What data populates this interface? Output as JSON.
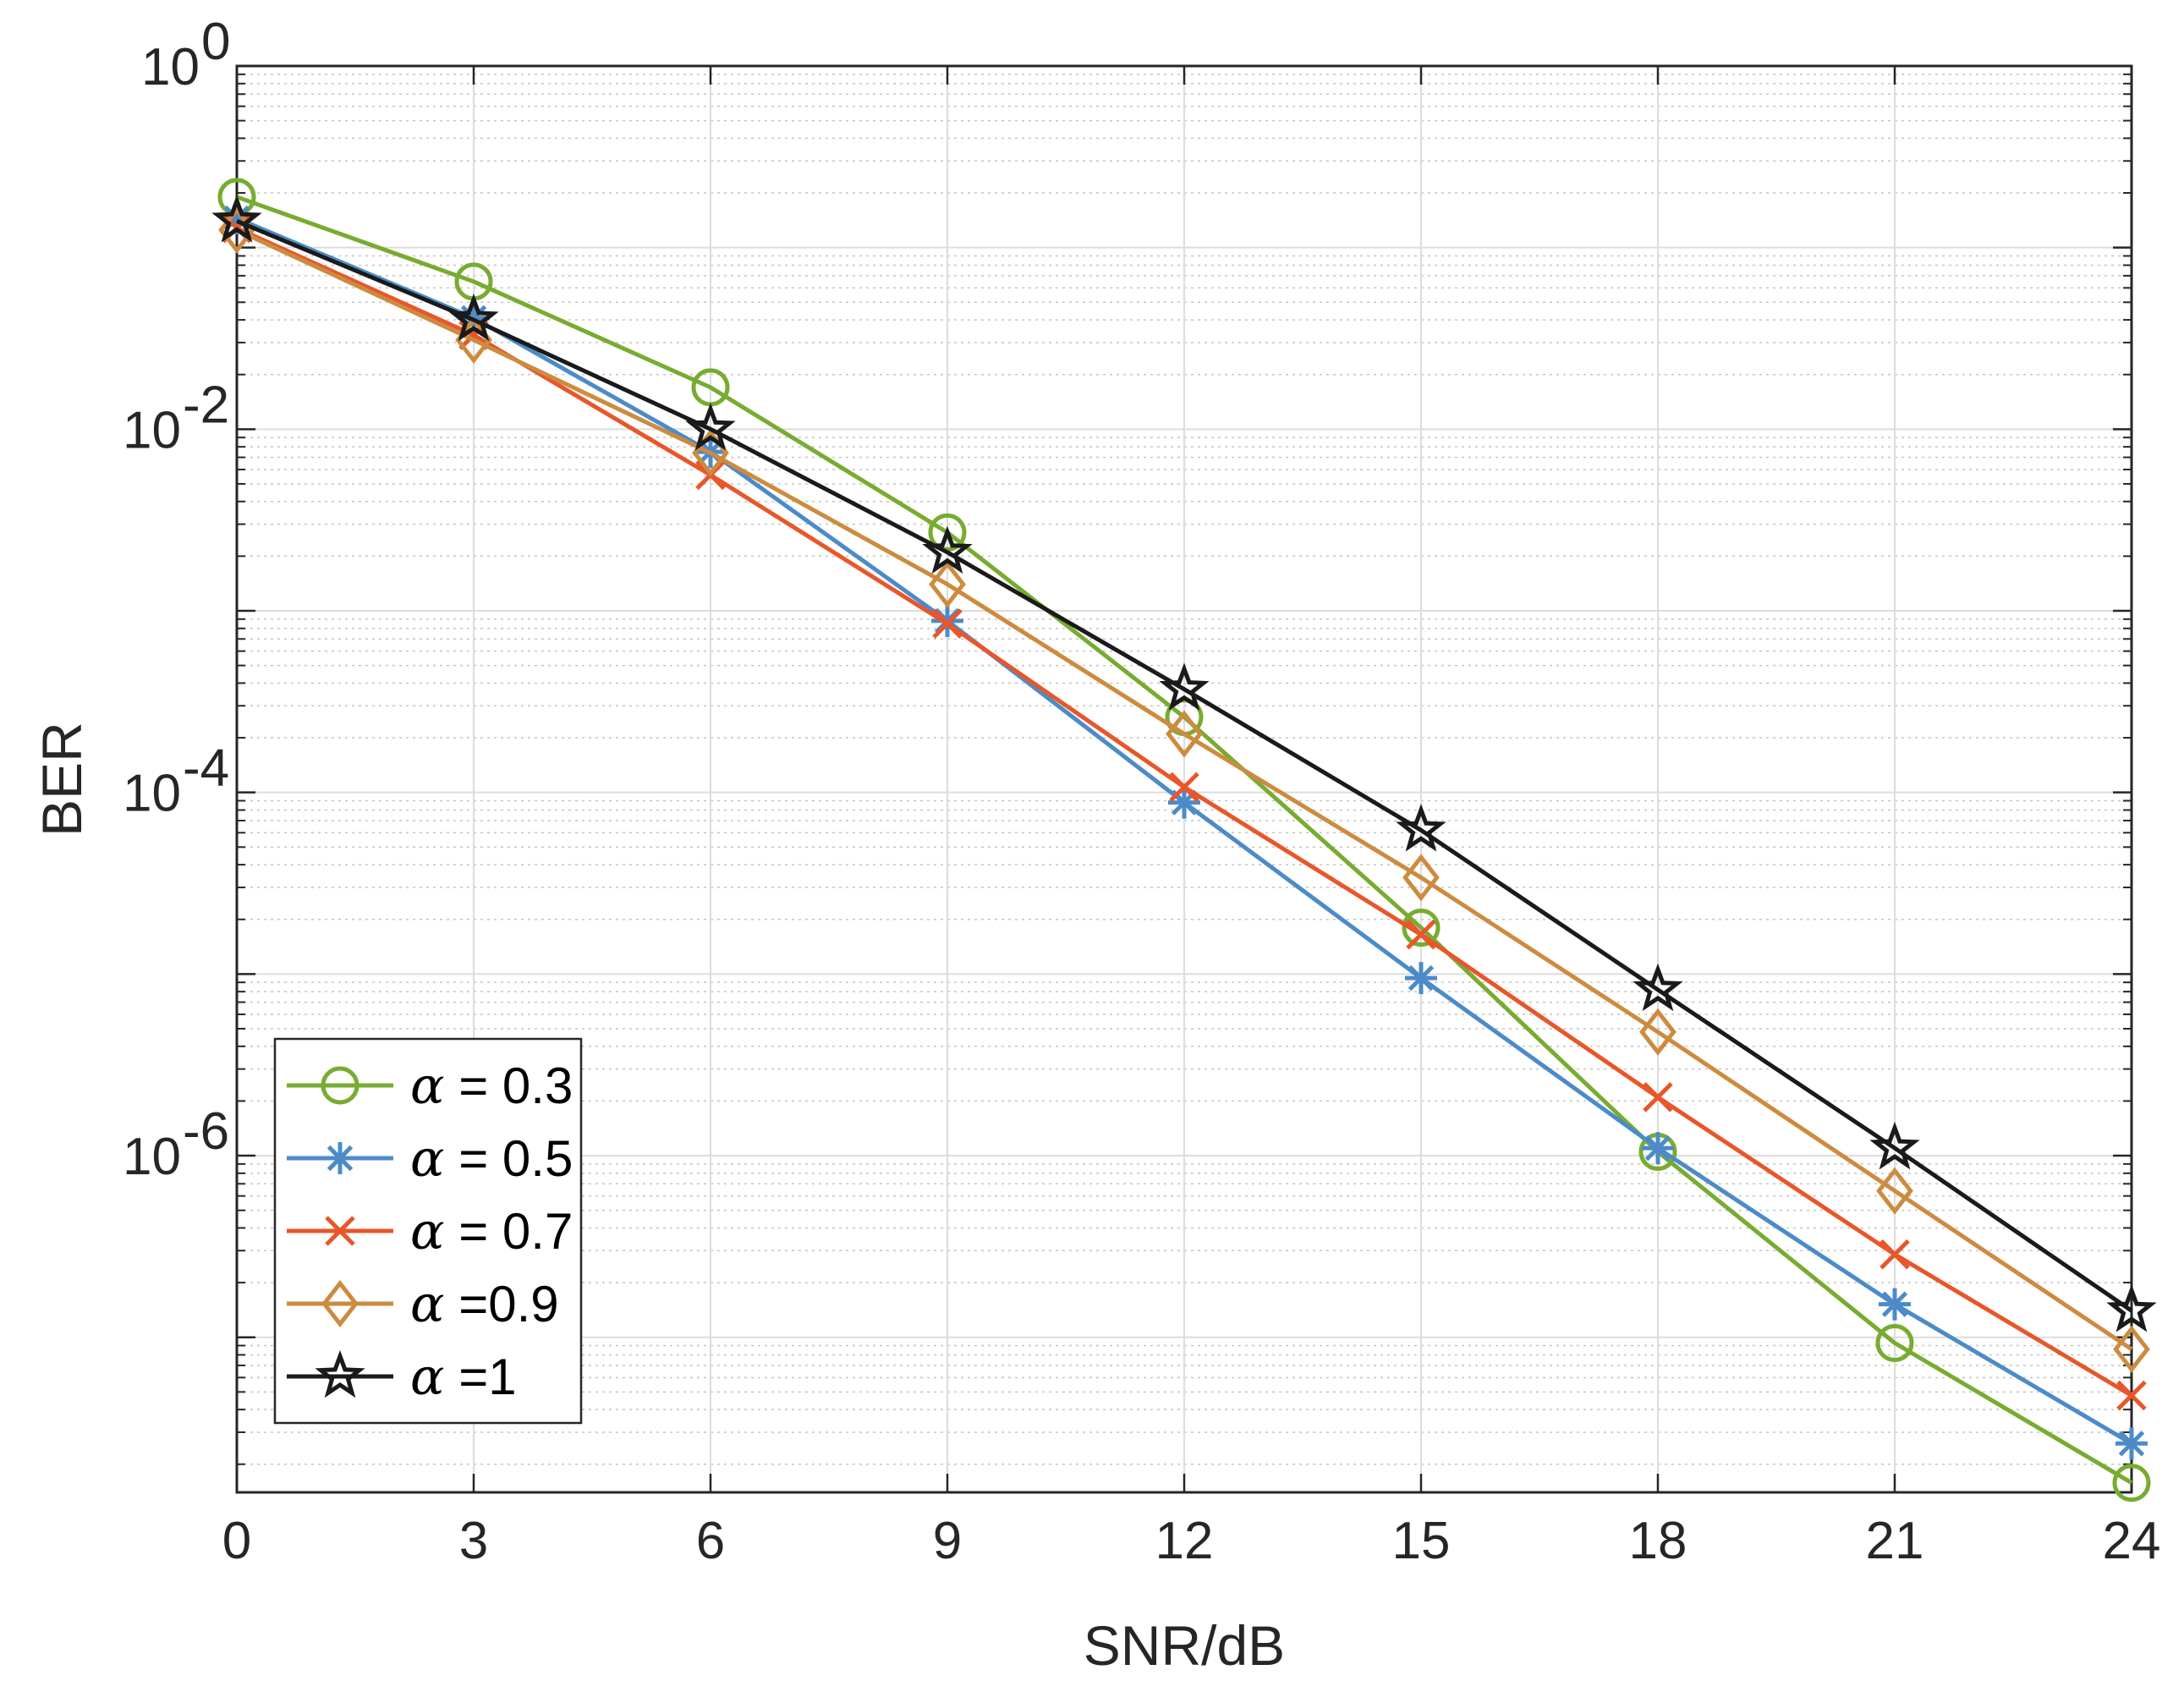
{
  "chart_data": {
    "type": "line",
    "title": "",
    "xlabel": "SNR/dB",
    "ylabel": "BER",
    "xlim": [
      0,
      24
    ],
    "x_ticks": [
      "0",
      "3",
      "6",
      "9",
      "12",
      "15",
      "18",
      "21",
      "24"
    ],
    "yscale": "log",
    "ylim": [
      1.4e-08,
      1
    ],
    "y_ticks": [
      {
        "value": 1,
        "base": "10",
        "exp": "0"
      },
      {
        "value": 0.01,
        "base": "10",
        "exp": "-2"
      },
      {
        "value": 0.0001,
        "base": "10",
        "exp": "-4"
      },
      {
        "value": 1e-06,
        "base": "10",
        "exp": "-6"
      }
    ],
    "grid": true,
    "legend_position": "bottom-left",
    "x": [
      0,
      3,
      6,
      9,
      12,
      15,
      18,
      21,
      24
    ],
    "series": [
      {
        "name_symbol": "α",
        "name_rest": " = 0.3",
        "color": "#77AC30",
        "marker": "circle",
        "values": [
          0.19,
          0.065,
          0.017,
          0.0027,
          0.00026,
          1.8e-05,
          1.05e-06,
          9.3e-08,
          1.58e-08
        ]
      },
      {
        "name_symbol": "α",
        "name_rest": " = 0.5",
        "color": "#4C8BC8",
        "marker": "asterisk",
        "values": [
          0.145,
          0.041,
          0.0075,
          0.00088,
          8.8e-05,
          9.5e-06,
          1.1e-06,
          1.52e-07,
          2.6e-08
        ]
      },
      {
        "name_symbol": "α",
        "name_rest": " = 0.7",
        "color": "#E8562A",
        "marker": "x",
        "values": [
          0.128,
          0.033,
          0.0056,
          0.00085,
          0.000107,
          1.65e-05,
          2.1e-06,
          2.86e-07,
          4.78e-08
        ]
      },
      {
        "name_symbol": "α",
        "name_rest": " =0.9",
        "color": "#CD8B3F",
        "marker": "diamond",
        "values": [
          0.125,
          0.031,
          0.0074,
          0.0014,
          0.00021,
          3.4e-05,
          4.8e-06,
          6.4e-07,
          8.6e-08
        ]
      },
      {
        "name_symbol": "α",
        "name_rest": " =1",
        "color": "#1A1A1A",
        "marker": "star",
        "values": [
          0.14,
          0.04,
          0.01,
          0.0021,
          0.00037,
          6.2e-05,
          8.2e-06,
          1.1e-06,
          1.4e-07
        ]
      }
    ]
  }
}
